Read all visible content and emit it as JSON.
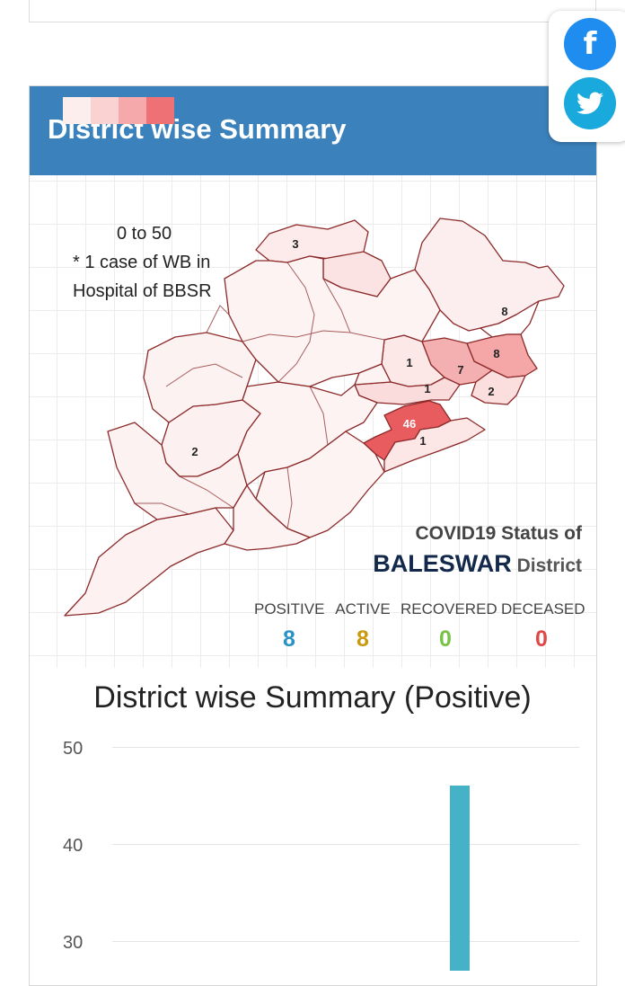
{
  "section_title": "District wise Summary",
  "social": {
    "facebook_glyph": "f",
    "facebook_icon": "facebook-icon",
    "twitter_icon": "twitter-icon"
  },
  "legend": {
    "colors": [
      "#fdeeee",
      "#fad2d2",
      "#f5a9ab",
      "#ee7275"
    ],
    "range_label": "0 to 50",
    "note_line1": "* 1 case of WB in",
    "note_line2": "Hospital of BBSR"
  },
  "map_labels": [
    "3",
    "8",
    "8",
    "7",
    "1",
    "1",
    "2",
    "46",
    "1",
    "2"
  ],
  "status": {
    "title": "COVID19 Status of",
    "district": "BALESWAR",
    "suffix": "District",
    "stats": [
      {
        "label": "POSITIVE",
        "value": "8",
        "color": "#2a93c6"
      },
      {
        "label": "ACTIVE",
        "value": "8",
        "color": "#c99a10"
      },
      {
        "label": "RECOVERED",
        "value": "0",
        "color": "#77c245"
      },
      {
        "label": "DECEASED",
        "value": "0",
        "color": "#e04848"
      }
    ]
  },
  "chart_data": {
    "type": "bar",
    "title": "District wise Summary (Positive)",
    "yticks": [
      "50",
      "40",
      "30"
    ],
    "ylim": [
      30,
      50
    ],
    "values": [
      46
    ],
    "bar_color": "#45b2c8"
  }
}
